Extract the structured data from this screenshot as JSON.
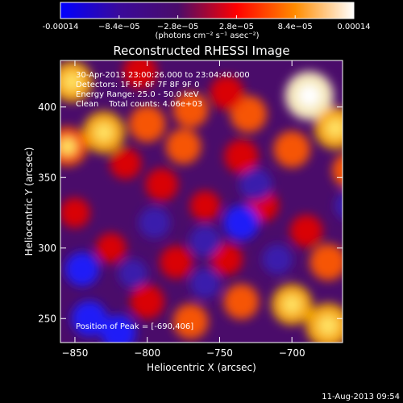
{
  "colorbar": {
    "tick_labels": [
      "-0.00014",
      "−8.4e−05",
      "−2.8e−05",
      "2.8e−05",
      "8.4e−05",
      "0.00014"
    ],
    "tick_values": [
      -0.00014,
      -8.4e-05,
      -2.8e-05,
      2.8e-05,
      8.4e-05,
      0.00014
    ],
    "unit_label": "(photons cm⁻² s⁻¹ asec⁻²)",
    "range": [
      -0.00014,
      0.00014
    ],
    "stops": [
      "#0000ff",
      "#3a0a9a",
      "#4a0c6a",
      "#ff0000",
      "#ff8c00",
      "#ffffff"
    ]
  },
  "chart_data": {
    "type": "heatmap",
    "title": "Reconstructed RHESSI Image",
    "xlabel": "Heliocentric X (arcsec)",
    "ylabel": "Heliocentric Y (arcsec)",
    "xlim": [
      -860,
      -665
    ],
    "ylim": [
      233,
      433
    ],
    "xticks": [
      -850,
      -800,
      -750,
      -700
    ],
    "xtick_labels": [
      "−850",
      "−800",
      "−750",
      "−700"
    ],
    "yticks": [
      250,
      300,
      350,
      400
    ],
    "ytick_labels": [
      "250",
      "300",
      "350",
      "400"
    ],
    "annotations": [
      "30-Apr-2013 23:00:26.000 to 23:04:40.000",
      "Detectors: 1F 5F 6F 7F 8F 9F 0",
      "Energy Range: 25.0 - 50.0 keV",
      "Clean    Total counts: 4.06e+03"
    ],
    "peak_label": "Position of Peak = [-690,406]",
    "peak": [
      -690,
      406
    ],
    "blobs": [
      {
        "x": -688,
        "y": 408,
        "v": 1.0
      },
      {
        "x": -670,
        "y": 385,
        "v": 0.75
      },
      {
        "x": -700,
        "y": 370,
        "v": 0.55
      },
      {
        "x": -660,
        "y": 355,
        "v": 0.5
      },
      {
        "x": -730,
        "y": 395,
        "v": 0.55
      },
      {
        "x": -745,
        "y": 410,
        "v": 0.45
      },
      {
        "x": -770,
        "y": 398,
        "v": 0.5
      },
      {
        "x": -800,
        "y": 388,
        "v": 0.55
      },
      {
        "x": -830,
        "y": 382,
        "v": 0.75
      },
      {
        "x": -855,
        "y": 372,
        "v": 0.65
      },
      {
        "x": -852,
        "y": 418,
        "v": 0.7
      },
      {
        "x": -805,
        "y": 425,
        "v": 0.45
      },
      {
        "x": -775,
        "y": 372,
        "v": 0.5
      },
      {
        "x": -735,
        "y": 365,
        "v": 0.45
      },
      {
        "x": -815,
        "y": 360,
        "v": 0.35
      },
      {
        "x": -790,
        "y": 345,
        "v": 0.4
      },
      {
        "x": -760,
        "y": 330,
        "v": 0.3
      },
      {
        "x": -720,
        "y": 330,
        "v": 0.35
      },
      {
        "x": -690,
        "y": 312,
        "v": 0.4
      },
      {
        "x": -675,
        "y": 290,
        "v": 0.55
      },
      {
        "x": -700,
        "y": 260,
        "v": 0.7
      },
      {
        "x": -675,
        "y": 245,
        "v": 0.85
      },
      {
        "x": -735,
        "y": 262,
        "v": 0.5
      },
      {
        "x": -770,
        "y": 248,
        "v": 0.5
      },
      {
        "x": -800,
        "y": 262,
        "v": 0.45
      },
      {
        "x": -745,
        "y": 292,
        "v": 0.35
      },
      {
        "x": -780,
        "y": 290,
        "v": 0.4
      },
      {
        "x": -825,
        "y": 300,
        "v": 0.3
      },
      {
        "x": -850,
        "y": 325,
        "v": 0.3
      },
      {
        "x": -840,
        "y": 250,
        "v": -0.5
      },
      {
        "x": -820,
        "y": 240,
        "v": -0.5
      },
      {
        "x": -845,
        "y": 285,
        "v": -0.45
      },
      {
        "x": -735,
        "y": 318,
        "v": -0.5
      },
      {
        "x": -725,
        "y": 345,
        "v": -0.4
      },
      {
        "x": -760,
        "y": 305,
        "v": -0.35
      },
      {
        "x": -795,
        "y": 318,
        "v": -0.35
      },
      {
        "x": -710,
        "y": 292,
        "v": -0.3
      },
      {
        "x": -660,
        "y": 330,
        "v": -0.3
      },
      {
        "x": -760,
        "y": 275,
        "v": -0.3
      },
      {
        "x": -810,
        "y": 282,
        "v": -0.25
      }
    ]
  },
  "footer_date": "11-Aug-2013 09:54"
}
